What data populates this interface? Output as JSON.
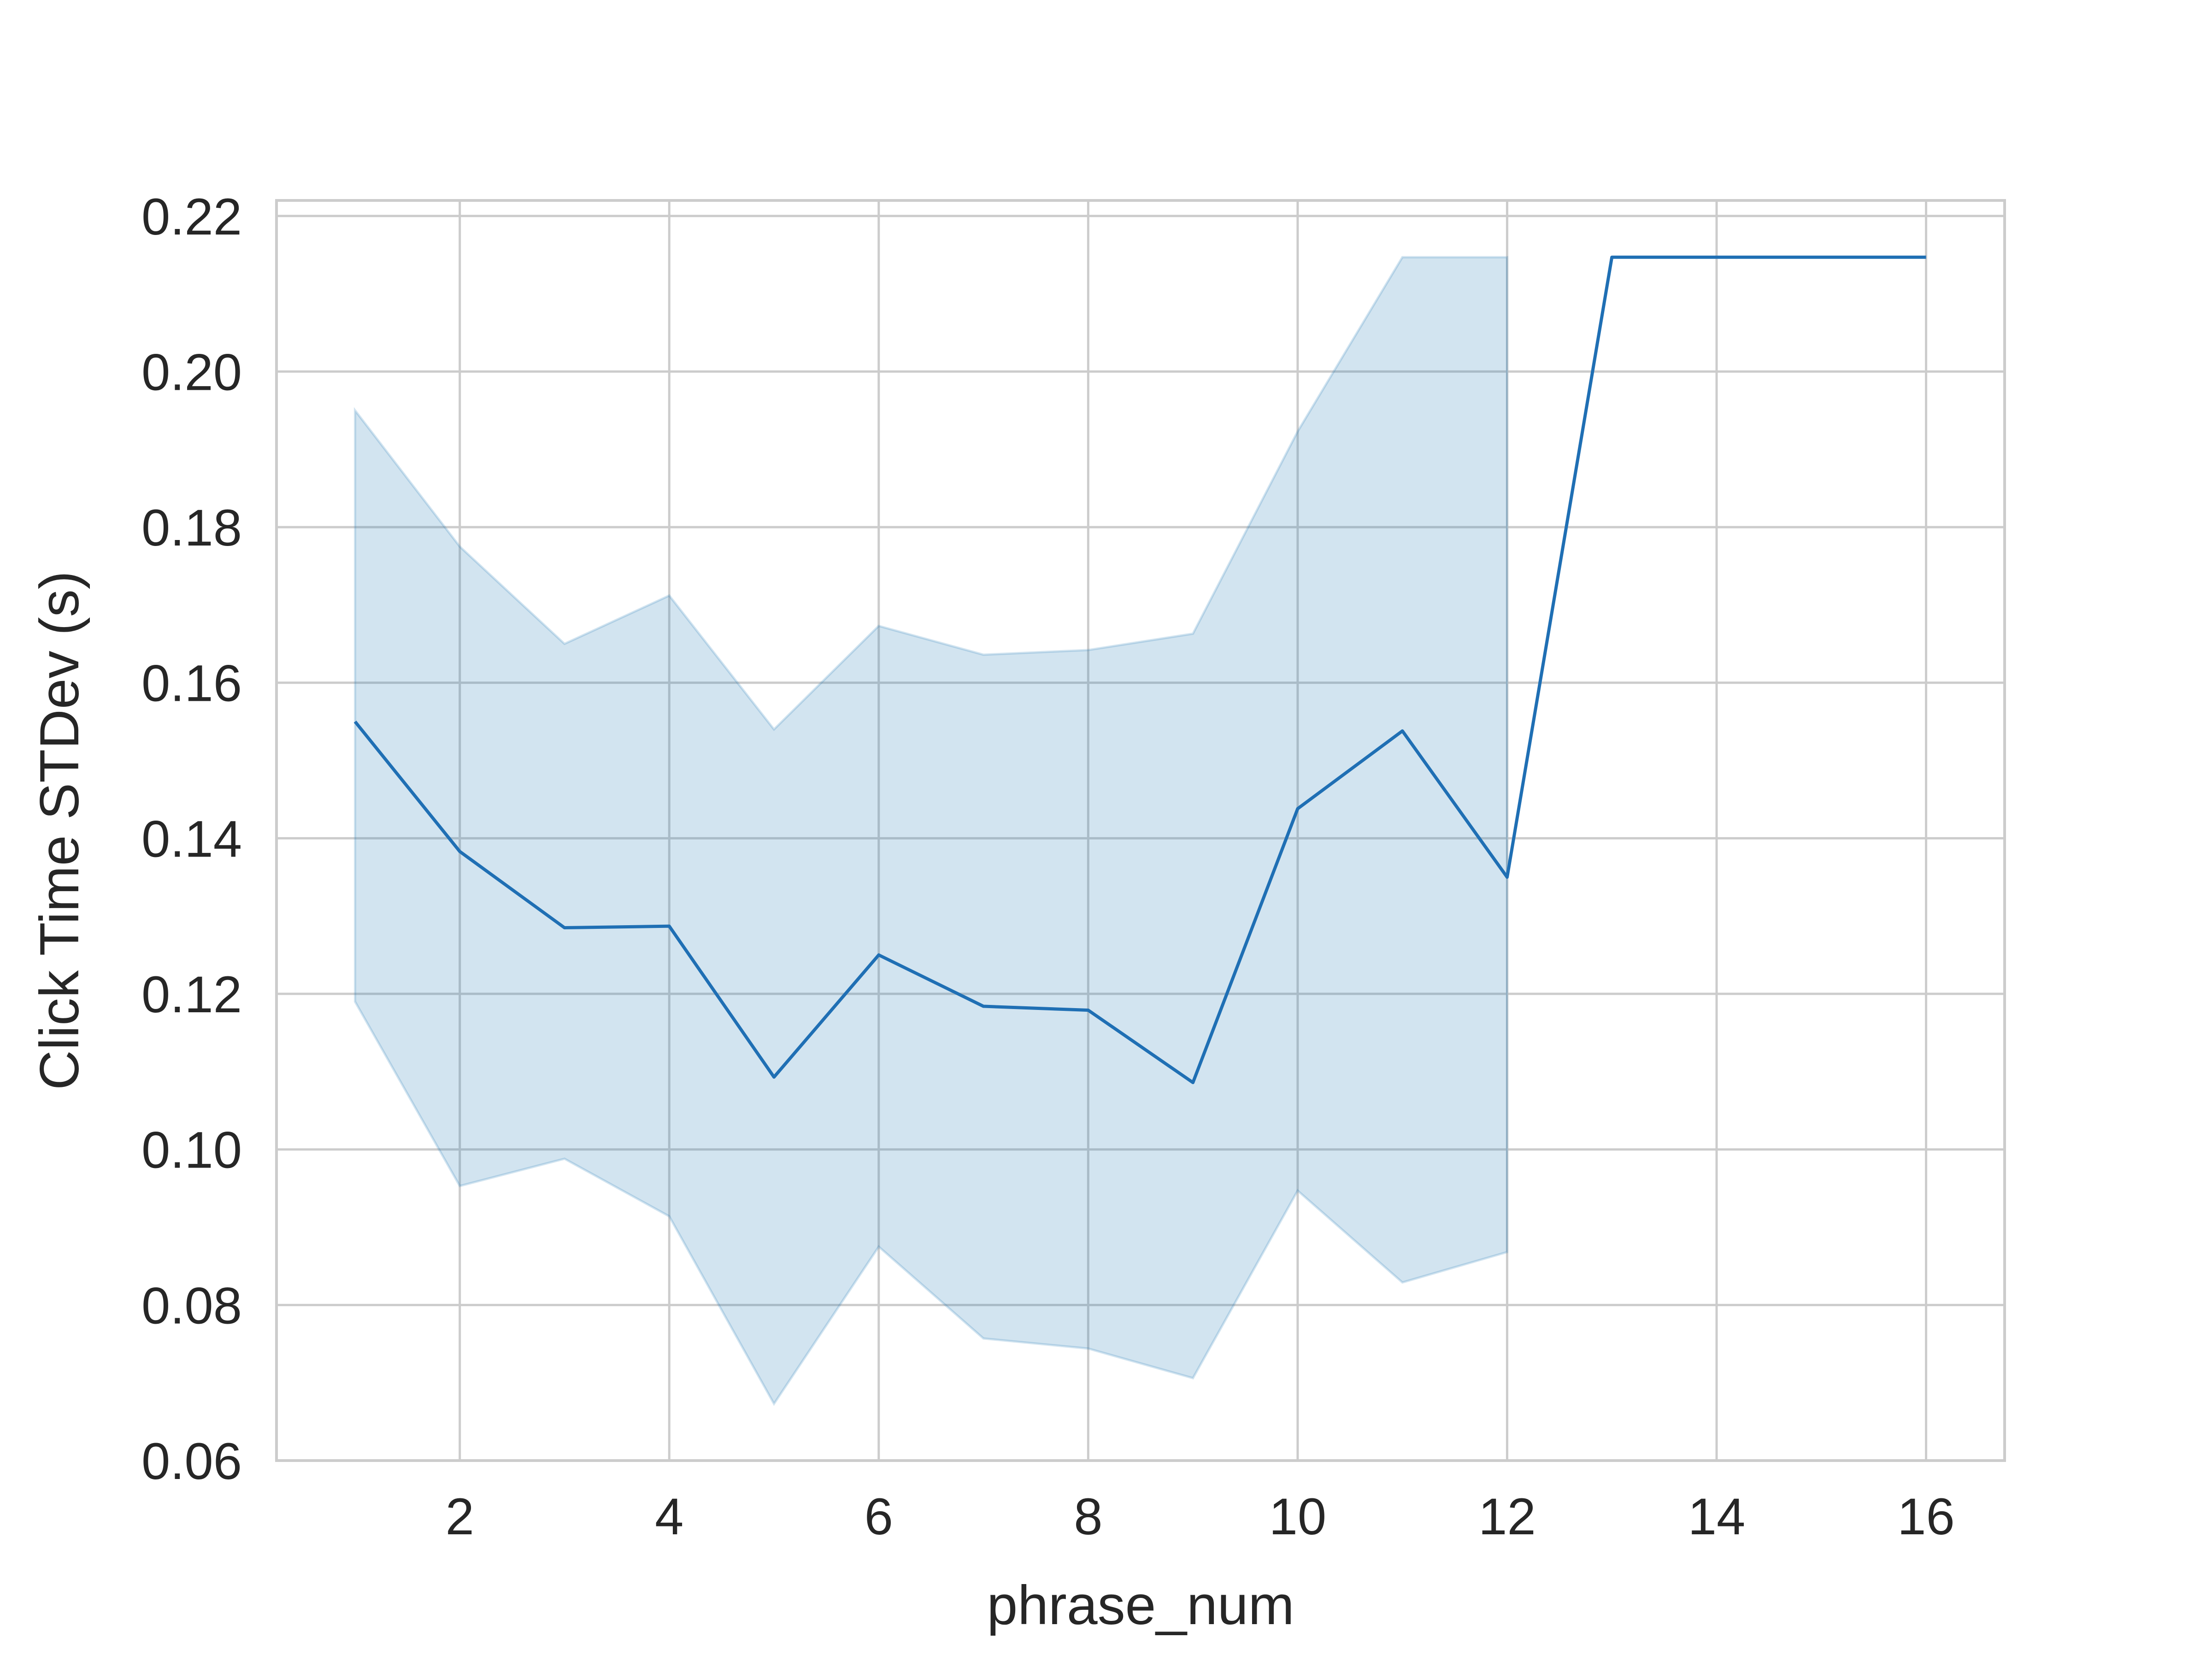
{
  "chart_data": {
    "type": "line",
    "title": "",
    "xlabel": "phrase_num",
    "ylabel": "Click Time STDev (s)",
    "xlim": [
      0.25,
      16.75
    ],
    "ylim": [
      0.06,
      0.222
    ],
    "x_ticks": [
      2,
      4,
      6,
      8,
      10,
      12,
      14,
      16
    ],
    "x_tick_labels": [
      "2",
      "4",
      "6",
      "8",
      "10",
      "12",
      "14",
      "16"
    ],
    "y_ticks": [
      0.06,
      0.08,
      0.1,
      0.12,
      0.14,
      0.16,
      0.18,
      0.2,
      0.22
    ],
    "y_tick_labels": [
      "0.06",
      "0.08",
      "0.10",
      "0.12",
      "0.14",
      "0.16",
      "0.18",
      "0.20",
      "0.22"
    ],
    "grid": true,
    "legend": "none",
    "colors": {
      "line": "#1f6fb4",
      "band_fill": "#1f77b4",
      "band_opacity": 0.2
    },
    "series": [
      {
        "x": [
          1,
          2,
          3,
          4,
          5,
          6,
          7,
          8,
          9,
          10,
          11,
          12,
          13,
          14,
          15,
          16
        ],
        "y": [
          0.155,
          0.1383,
          0.1285,
          0.1287,
          0.1093,
          0.125,
          0.1184,
          0.1179,
          0.1086,
          0.1438,
          0.1538,
          0.135,
          0.2147,
          0.2147,
          0.2147,
          0.2147
        ],
        "ci_lower": [
          0.119,
          0.0953,
          0.0988,
          0.0914,
          0.0673,
          0.0875,
          0.0757,
          0.0744,
          0.0706,
          0.0947,
          0.0829,
          0.0868,
          null,
          null,
          null,
          null
        ],
        "ci_upper": [
          0.195,
          0.1775,
          0.165,
          0.1712,
          0.154,
          0.1673,
          0.1636,
          0.1642,
          0.1663,
          0.1923,
          0.2147,
          0.2147,
          null,
          null,
          null,
          null
        ]
      }
    ]
  }
}
